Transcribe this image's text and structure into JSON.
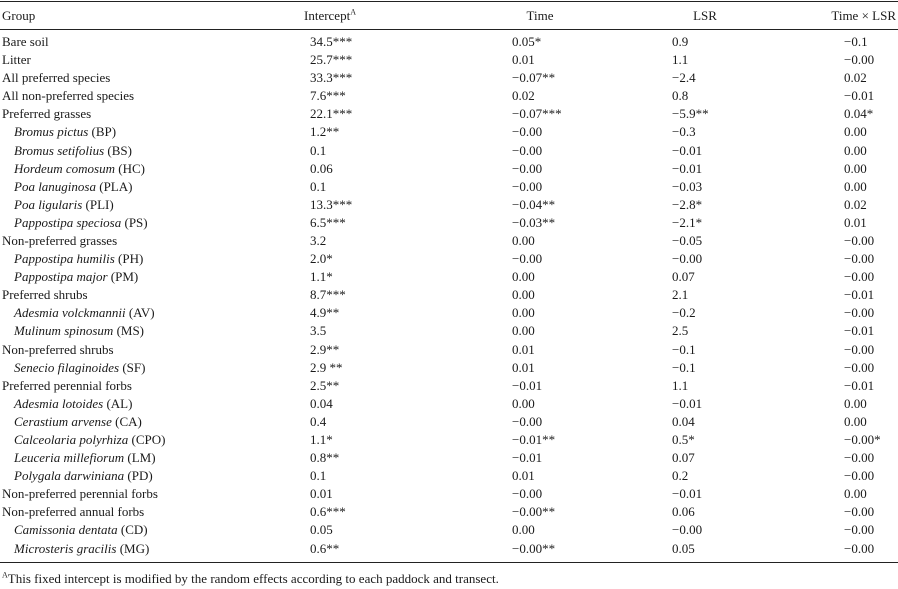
{
  "table": {
    "headers": {
      "group": "Group",
      "intercept": "Intercept",
      "intercept_sup": "A",
      "time": "Time",
      "lsr": "LSR",
      "time_x_lsr": "Time × LSR"
    },
    "rows": [
      {
        "name": "Bare soil",
        "code": "",
        "sub": false,
        "intercept": "34.5***",
        "time": "0.05*",
        "lsr": "0.9",
        "txl": "−0.1"
      },
      {
        "name": "Litter",
        "code": "",
        "sub": false,
        "intercept": "25.7***",
        "time": "0.01",
        "lsr": "1.1",
        "txl": "−0.00"
      },
      {
        "name": "All preferred species",
        "code": "",
        "sub": false,
        "intercept": "33.3***",
        "time": "−0.07**",
        "lsr": "−2.4",
        "txl": "0.02"
      },
      {
        "name": "All non-preferred species",
        "code": "",
        "sub": false,
        "intercept": "7.6***",
        "time": "0.02",
        "lsr": "0.8",
        "txl": "−0.01"
      },
      {
        "name": "Preferred grasses",
        "code": "",
        "sub": false,
        "intercept": "22.1***",
        "time": "−0.07***",
        "lsr": "−5.9**",
        "txl": "0.04*"
      },
      {
        "name": "Bromus pictus",
        "code": " (BP)",
        "sub": true,
        "intercept": "1.2**",
        "time": "−0.00",
        "lsr": "−0.3",
        "txl": "0.00"
      },
      {
        "name": "Bromus setifolius",
        "code": " (BS)",
        "sub": true,
        "intercept": "0.1",
        "time": "−0.00",
        "lsr": "−0.01",
        "txl": "0.00"
      },
      {
        "name": "Hordeum comosum",
        "code": " (HC)",
        "sub": true,
        "intercept": "0.06",
        "time": "−0.00",
        "lsr": "−0.01",
        "txl": "0.00"
      },
      {
        "name": "Poa lanuginosa",
        "code": " (PLA)",
        "sub": true,
        "intercept": "0.1",
        "time": "−0.00",
        "lsr": "−0.03",
        "txl": "0.00"
      },
      {
        "name": "Poa ligularis",
        "code": " (PLI)",
        "sub": true,
        "intercept": "13.3***",
        "time": "−0.04**",
        "lsr": "−2.8*",
        "txl": "0.02"
      },
      {
        "name": "Pappostipa speciosa",
        "code": " (PS)",
        "sub": true,
        "intercept": "6.5***",
        "time": "−0.03**",
        "lsr": "−2.1*",
        "txl": "0.01"
      },
      {
        "name": "Non-preferred grasses",
        "code": "",
        "sub": false,
        "intercept": "3.2",
        "time": "0.00",
        "lsr": "−0.05",
        "txl": "−0.00"
      },
      {
        "name": "Pappostipa humilis",
        "code": " (PH)",
        "sub": true,
        "intercept": "2.0*",
        "time": "−0.00",
        "lsr": "−0.00",
        "txl": "−0.00"
      },
      {
        "name": "Pappostipa major",
        "code": " (PM)",
        "sub": true,
        "intercept": "1.1*",
        "time": "0.00",
        "lsr": "0.07",
        "txl": "−0.00"
      },
      {
        "name": "Preferred shrubs",
        "code": "",
        "sub": false,
        "intercept": "8.7***",
        "time": "0.00",
        "lsr": "2.1",
        "txl": "−0.01"
      },
      {
        "name": "Adesmia volckmannii",
        "code": " (AV)",
        "sub": true,
        "intercept": "4.9**",
        "time": "0.00",
        "lsr": "−0.2",
        "txl": "−0.00"
      },
      {
        "name": "Mulinum spinosum",
        "code": " (MS)",
        "sub": true,
        "intercept": "3.5",
        "time": "0.00",
        "lsr": "2.5",
        "txl": "−0.01"
      },
      {
        "name": "Non-preferred shrubs",
        "code": "",
        "sub": false,
        "intercept": "2.9**",
        "time": "0.01",
        "lsr": "−0.1",
        "txl": "−0.00"
      },
      {
        "name": "Senecio filaginoides",
        "code": " (SF)",
        "sub": true,
        "intercept": "2.9 **",
        "time": "0.01",
        "lsr": "−0.1",
        "txl": "−0.00"
      },
      {
        "name": "Preferred perennial forbs",
        "code": "",
        "sub": false,
        "intercept": "2.5**",
        "time": "−0.01",
        "lsr": "1.1",
        "txl": "−0.01"
      },
      {
        "name": "Adesmia lotoides",
        "code": " (AL)",
        "sub": true,
        "intercept": "0.04",
        "time": "0.00",
        "lsr": "−0.01",
        "txl": "0.00"
      },
      {
        "name": "Cerastium arvense",
        "code": " (CA)",
        "sub": true,
        "intercept": "0.4",
        "time": "−0.00",
        "lsr": "0.04",
        "txl": "0.00"
      },
      {
        "name": "Calceolaria polyrhiza",
        "code": " (CPO)",
        "sub": true,
        "intercept": "1.1*",
        "time": "−0.01**",
        "lsr": "0.5*",
        "txl": "−0.00*"
      },
      {
        "name": "Leuceria millefiorum",
        "code": " (LM)",
        "sub": true,
        "intercept": "0.8**",
        "time": "−0.01",
        "lsr": "0.07",
        "txl": "−0.00"
      },
      {
        "name": "Polygala darwiniana",
        "code": " (PD)",
        "sub": true,
        "intercept": "0.1",
        "time": "0.01",
        "lsr": "0.2",
        "txl": "−0.00"
      },
      {
        "name": "Non-preferred perennial forbs",
        "code": "",
        "sub": false,
        "intercept": "0.01",
        "time": "−0.00",
        "lsr": "−0.01",
        "txl": "0.00"
      },
      {
        "name": "Non-preferred annual forbs",
        "code": "",
        "sub": false,
        "intercept": "0.6***",
        "time": "−0.00**",
        "lsr": "0.06",
        "txl": "−0.00"
      },
      {
        "name": "Camissonia dentata",
        "code": " (CD)",
        "sub": true,
        "intercept": "0.05",
        "time": "0.00",
        "lsr": "−0.00",
        "txl": "−0.00"
      },
      {
        "name": "Microsteris gracilis",
        "code": " (MG)",
        "sub": true,
        "intercept": "0.6**",
        "time": "−0.00**",
        "lsr": "0.05",
        "txl": "−0.00"
      }
    ]
  },
  "footnote": {
    "marker": "A",
    "text": "This fixed intercept is modified by the random effects according to each paddock and transect."
  }
}
